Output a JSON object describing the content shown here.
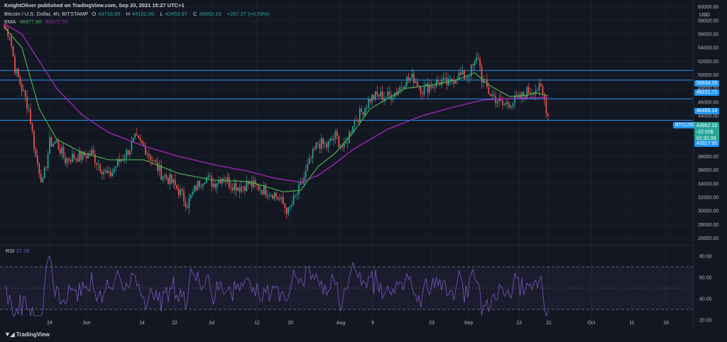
{
  "header": {
    "publisher": "KnightOliver published on TradingView.com, Sep 20, 2021 15:27 UTC+1",
    "symbol": "Bitcoin / U.S. Dollar, 4h, BITSTAMP",
    "open_label": "O",
    "open": "43718.80",
    "high_label": "H",
    "high": "44152.00",
    "low_label": "L",
    "low": "42453.97",
    "close_label": "C",
    "close": "43962.15",
    "change": "+257.27 (+0.59%)",
    "ema_label": "EMA",
    "ema_fast": "46977.80",
    "ema_slow": "46677.70"
  },
  "currency": "USD",
  "rsi": {
    "label": "RSI",
    "value": "27.29"
  },
  "footer": {
    "logo": "TradingView"
  },
  "price_tags": {
    "symbol": "BTCUSD",
    "last": "43962.15",
    "pct": "-22.55$",
    "timer": "01:32:09",
    "low_line": "43317.95"
  },
  "colors": {
    "background": "#131722",
    "up": "#26a69a",
    "down": "#ef5350",
    "ema_fast": "#4caf50",
    "ema_slow": "#9c27b0",
    "hline": "#2196f3",
    "rsi": "#7e57c2"
  },
  "chart_data": {
    "type": "candlestick",
    "price_axis": {
      "ylim": [
        25000,
        61000
      ],
      "ticks": [
        "60000.00",
        "58000.00",
        "56000.00",
        "54000.00",
        "52000.00",
        "50000.00",
        "48000.00",
        "46000.00",
        "44000.00",
        "42000.00",
        "40000.00",
        "38000.00",
        "36000.00",
        "34000.00",
        "32000.00",
        "30000.00",
        "28000.00",
        "26000.00"
      ]
    },
    "rsi_axis": {
      "ylim": [
        14,
        90
      ],
      "ticks": [
        "80.00",
        "60.00",
        "40.00",
        "20.00"
      ],
      "bands": [
        30,
        50,
        70
      ]
    },
    "time_labels": [
      "24",
      "Jun",
      "14",
      "22",
      "Jul",
      "12",
      "20",
      "Aug",
      "9",
      "23",
      "Sep",
      "13",
      "21",
      "Oct",
      "11",
      "19"
    ],
    "horizontal_levels": [
      {
        "label": "50634.25",
        "value": 50634.25
      },
      {
        "label": "49221.71",
        "value": 49221.71
      },
      {
        "label": "46456.14",
        "value": 46456.14
      },
      {
        "label": "43317.95",
        "value": 43317.95
      }
    ],
    "anchors": [
      [
        0,
        57000
      ],
      [
        3,
        56000
      ],
      [
        6,
        51000
      ],
      [
        10,
        48000
      ],
      [
        14,
        45000
      ],
      [
        18,
        38000
      ],
      [
        22,
        34000
      ],
      [
        26,
        40000
      ],
      [
        30,
        40000
      ],
      [
        35,
        37500
      ],
      [
        40,
        38000
      ],
      [
        45,
        38000
      ],
      [
        50,
        38500
      ],
      [
        55,
        36500
      ],
      [
        60,
        35000
      ],
      [
        65,
        37000
      ],
      [
        70,
        38500
      ],
      [
        75,
        40500
      ],
      [
        80,
        39500
      ],
      [
        85,
        37500
      ],
      [
        90,
        35500
      ],
      [
        95,
        34500
      ],
      [
        100,
        33000
      ],
      [
        105,
        31000
      ],
      [
        110,
        33500
      ],
      [
        115,
        35000
      ],
      [
        120,
        34000
      ],
      [
        125,
        35000
      ],
      [
        130,
        34000
      ],
      [
        135,
        33500
      ],
      [
        140,
        34000
      ],
      [
        145,
        33500
      ],
      [
        150,
        33000
      ],
      [
        155,
        32500
      ],
      [
        160,
        31000
      ],
      [
        163,
        29800
      ],
      [
        166,
        31500
      ],
      [
        170,
        33500
      ],
      [
        175,
        37000
      ],
      [
        180,
        40000
      ],
      [
        185,
        39500
      ],
      [
        190,
        41000
      ],
      [
        195,
        39000
      ],
      [
        200,
        43000
      ],
      [
        205,
        44500
      ],
      [
        210,
        46500
      ],
      [
        215,
        47000
      ],
      [
        220,
        46800
      ],
      [
        225,
        47500
      ],
      [
        230,
        49200
      ],
      [
        235,
        49500
      ],
      [
        240,
        47800
      ],
      [
        245,
        48500
      ],
      [
        250,
        49000
      ],
      [
        255,
        48600
      ],
      [
        260,
        50000
      ],
      [
        265,
        49700
      ],
      [
        270,
        51500
      ],
      [
        272,
        52800
      ],
      [
        274,
        49500
      ],
      [
        278,
        47500
      ],
      [
        282,
        46500
      ],
      [
        286,
        45500
      ],
      [
        290,
        46000
      ],
      [
        295,
        46300
      ],
      [
        300,
        47500
      ],
      [
        305,
        48000
      ],
      [
        308,
        47800
      ],
      [
        310,
        46200
      ],
      [
        312,
        44000
      ]
    ],
    "ema_fast_anchors": [
      [
        0,
        57000
      ],
      [
        10,
        54000
      ],
      [
        20,
        45000
      ],
      [
        30,
        40500
      ],
      [
        45,
        38500
      ],
      [
        60,
        37500
      ],
      [
        80,
        37500
      ],
      [
        100,
        35500
      ],
      [
        120,
        34500
      ],
      [
        140,
        34300
      ],
      [
        160,
        32800
      ],
      [
        170,
        33000
      ],
      [
        180,
        36500
      ],
      [
        190,
        38500
      ],
      [
        200,
        41500
      ],
      [
        210,
        45000
      ],
      [
        220,
        46500
      ],
      [
        230,
        48000
      ],
      [
        240,
        48300
      ],
      [
        250,
        48700
      ],
      [
        260,
        49300
      ],
      [
        270,
        50300
      ],
      [
        278,
        48500
      ],
      [
        290,
        46800
      ],
      [
        300,
        47000
      ],
      [
        305,
        47400
      ],
      [
        312,
        46900
      ]
    ],
    "ema_slow_anchors": [
      [
        0,
        57500
      ],
      [
        10,
        56000
      ],
      [
        20,
        52000
      ],
      [
        30,
        48000
      ],
      [
        45,
        44000
      ],
      [
        60,
        41500
      ],
      [
        80,
        39500
      ],
      [
        100,
        38000
      ],
      [
        120,
        36800
      ],
      [
        140,
        35800
      ],
      [
        155,
        34800
      ],
      [
        170,
        34200
      ],
      [
        180,
        35200
      ],
      [
        190,
        37000
      ],
      [
        200,
        39000
      ],
      [
        220,
        42000
      ],
      [
        240,
        44000
      ],
      [
        260,
        45400
      ],
      [
        275,
        46300
      ],
      [
        290,
        46500
      ],
      [
        312,
        46670
      ]
    ]
  }
}
